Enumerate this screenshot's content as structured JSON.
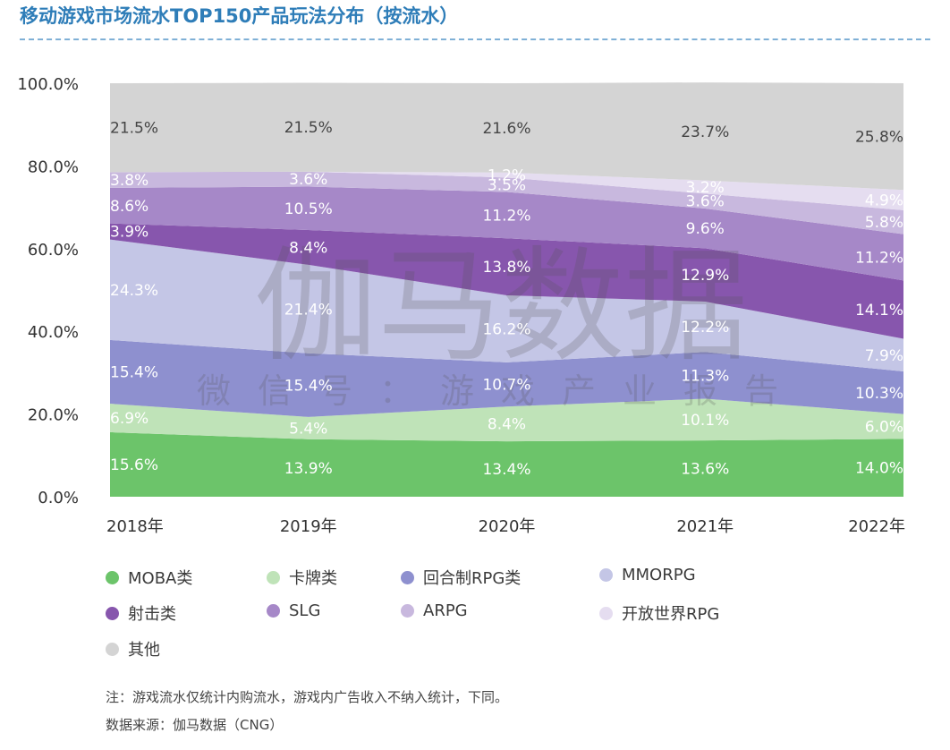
{
  "title": "移动游戏市场流水TOP150产品玩法分布（按流水）",
  "watermark": {
    "main": "伽马数据",
    "sub": "微信号：游戏产业报告"
  },
  "notes": [
    "注：游戏流水仅统计内购流水，游戏内广告收入不纳入统计，下同。",
    "数据来源：伽马数据（CNG）"
  ],
  "chart_data": {
    "type": "area",
    "stacked": true,
    "categories": [
      "2018年",
      "2019年",
      "2020年",
      "2021年",
      "2022年"
    ],
    "yticks": [
      "0.0%",
      "20.0%",
      "40.0%",
      "60.0%",
      "80.0%",
      "100.0%"
    ],
    "ylim": [
      0,
      100
    ],
    "legend_position": "bottom",
    "series": [
      {
        "name": "MOBA类",
        "color": "#6cc46a",
        "values": [
          15.6,
          13.9,
          13.4,
          13.6,
          14.0
        ],
        "labels": [
          "15.6%",
          "13.9%",
          "13.4%",
          "13.6%",
          "14.0%"
        ]
      },
      {
        "name": "卡牌类",
        "color": "#bfe3b8",
        "values": [
          6.9,
          5.4,
          8.4,
          10.1,
          6.0
        ],
        "labels": [
          "6.9%",
          "5.4%",
          "8.4%",
          "10.1%",
          "6.0%"
        ]
      },
      {
        "name": "回合制RPG类",
        "color": "#8e90cf",
        "values": [
          15.4,
          15.4,
          10.7,
          11.3,
          10.3
        ],
        "labels": [
          "15.4%",
          "15.4%",
          "10.7%",
          "11.3%",
          "10.3%"
        ]
      },
      {
        "name": "MMORPG",
        "color": "#c4c6e6",
        "values": [
          24.3,
          21.4,
          16.2,
          12.2,
          7.9
        ],
        "labels": [
          "24.3%",
          "21.4%",
          "16.2%",
          "12.2%",
          "7.9%"
        ]
      },
      {
        "name": "射击类",
        "color": "#8756ad",
        "values": [
          3.9,
          8.4,
          13.8,
          12.9,
          14.1
        ],
        "labels": [
          "3.9%",
          "8.4%",
          "13.8%",
          "12.9%",
          "14.1%"
        ]
      },
      {
        "name": "SLG",
        "color": "#a688c8",
        "values": [
          8.6,
          10.5,
          11.2,
          9.6,
          11.2
        ],
        "labels": [
          "8.6%",
          "10.5%",
          "11.2%",
          "9.6%",
          "11.2%"
        ]
      },
      {
        "name": "ARPG",
        "color": "#c8b8de",
        "values": [
          3.8,
          3.6,
          3.5,
          3.6,
          5.8
        ],
        "labels": [
          "3.8%",
          "3.6%",
          "3.5%",
          "3.6%",
          "5.8%"
        ]
      },
      {
        "name": "开放世界RPG",
        "color": "#e5ddf0",
        "values": [
          0,
          0,
          1.2,
          3.2,
          4.9
        ],
        "labels": [
          "",
          "",
          "1.2%",
          "3.2%",
          "4.9%"
        ]
      },
      {
        "name": "其他",
        "color": "#d4d4d4",
        "values": [
          21.5,
          21.5,
          21.6,
          23.7,
          25.8
        ],
        "labels": [
          "21.5%",
          "21.5%",
          "21.6%",
          "23.7%",
          "25.8%"
        ]
      }
    ]
  }
}
